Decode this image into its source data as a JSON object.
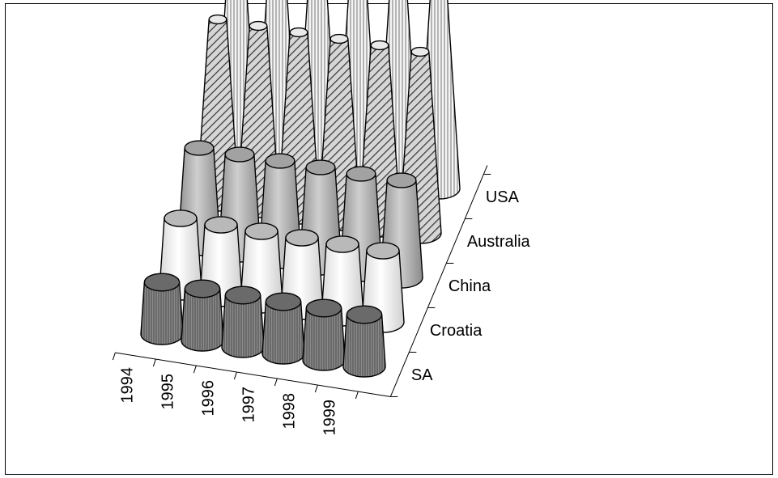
{
  "chart_data": {
    "type": "3d-cone",
    "title": "",
    "xlabel": "",
    "ylabel": "",
    "zlabel": "",
    "categories": [
      "1994",
      "1995",
      "1996",
      "1997",
      "1998",
      "1999"
    ],
    "series": [
      {
        "name": "SA",
        "values": [
          0.8,
          0.8,
          0.8,
          0.8,
          0.8,
          0.8
        ]
      },
      {
        "name": "Croatia",
        "values": [
          1.1,
          1.1,
          1.1,
          1.1,
          1.1,
          1.1
        ]
      },
      {
        "name": "China",
        "values": [
          1.5,
          1.5,
          1.5,
          1.5,
          1.5,
          1.5
        ]
      },
      {
        "name": "Australia",
        "values": [
          2.8,
          2.8,
          2.8,
          2.8,
          2.8,
          2.8
        ]
      },
      {
        "name": "USA",
        "values": [
          4.6,
          4.6,
          4.6,
          4.6,
          4.6,
          4.6
        ]
      }
    ],
    "grid": false,
    "legend": "none",
    "series_fills": [
      "#6a6a6a",
      "#b9b9b9",
      "#a2a2a2",
      "#e9e9e9",
      "#e4e4e4"
    ]
  }
}
